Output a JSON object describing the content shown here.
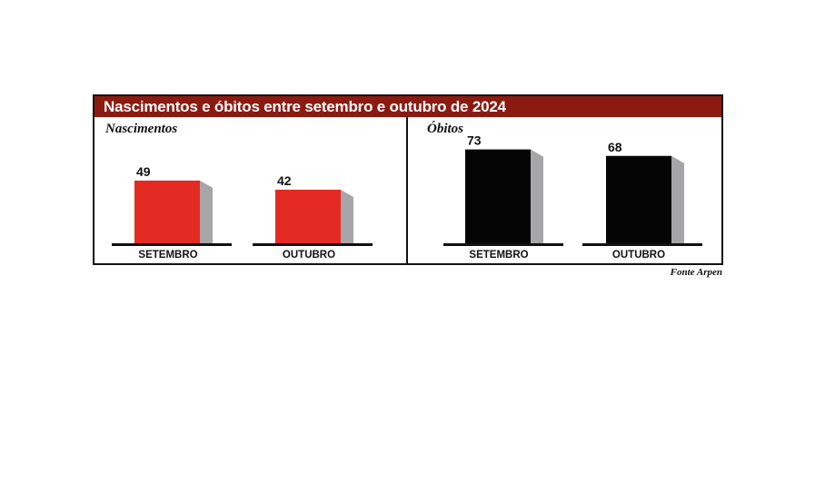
{
  "title": "Nascimentos e óbitos entre setembro e outubro de 2024",
  "source": "Fonte Arpen",
  "colors": {
    "title_bg": "#8b1a10",
    "births": "#e32b24",
    "deaths": "#050505",
    "side": "#a6a6a8"
  },
  "chart_data": [
    {
      "type": "bar",
      "title": "Nascimentos",
      "categories": [
        "SETEMBRO",
        "OUTUBRO"
      ],
      "values": [
        49,
        42
      ],
      "value_labels": [
        "49",
        "42"
      ],
      "color": "#e32b24"
    },
    {
      "type": "bar",
      "title": "Óbitos",
      "categories": [
        "SETEMBRO",
        "OUTUBRO"
      ],
      "values": [
        73,
        68
      ],
      "value_labels": [
        "73",
        "68"
      ],
      "color": "#050505"
    }
  ]
}
